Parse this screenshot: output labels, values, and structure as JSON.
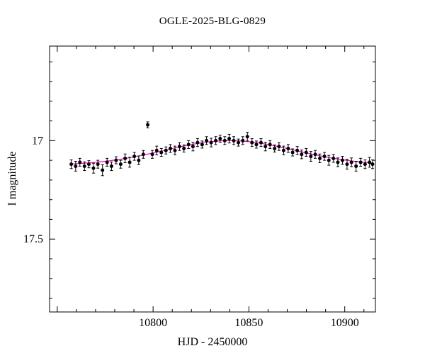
{
  "chart": {
    "title": "OGLE-2025-BLG-0829",
    "xlabel": "HJD - 2450000",
    "ylabel": "I magnitude"
  },
  "chart_data": {
    "type": "scatter",
    "title": "OGLE-2025-BLG-0829",
    "xlabel": "HJD - 2450000",
    "ylabel": "I magnitude",
    "xlim": [
      10746,
      10916
    ],
    "ylim": [
      16.52,
      17.87
    ],
    "y_axis_inverted": true,
    "xticks": [
      10800,
      10850,
      10900
    ],
    "yticks": [
      17,
      17.5
    ],
    "x_minor_step": 10,
    "x_major_step": 50,
    "y_minor_step": 0.1,
    "y_major_step": 0.5,
    "point_color": "#000000",
    "model_color": "#ff00cc",
    "model": {
      "type": "gaussian",
      "baseline": 17.125,
      "amplitude": 0.125,
      "t0": 10840,
      "width": 48,
      "range": [
        10758,
        10915
      ]
    },
    "points": [
      [
        10757.3,
        17.12,
        0.022
      ],
      [
        10759.6,
        17.13,
        0.025
      ],
      [
        10761.8,
        17.11,
        0.02
      ],
      [
        10764.2,
        17.13,
        0.022
      ],
      [
        10766.5,
        17.12,
        0.018
      ],
      [
        10768.9,
        17.14,
        0.025
      ],
      [
        10771.2,
        17.12,
        0.02
      ],
      [
        10773.6,
        17.15,
        0.028
      ],
      [
        10776.0,
        17.11,
        0.02
      ],
      [
        10778.3,
        17.13,
        0.022
      ],
      [
        10780.7,
        17.1,
        0.018
      ],
      [
        10783.1,
        17.12,
        0.02
      ],
      [
        10785.4,
        17.09,
        0.022
      ],
      [
        10787.8,
        17.11,
        0.025
      ],
      [
        10790.2,
        17.08,
        0.02
      ],
      [
        10792.5,
        17.1,
        0.022
      ],
      [
        10794.9,
        17.07,
        0.02
      ],
      [
        10797.2,
        16.92,
        0.015
      ],
      [
        10799.6,
        17.07,
        0.02
      ],
      [
        10801.9,
        17.05,
        0.022
      ],
      [
        10804.3,
        17.06,
        0.02
      ],
      [
        10806.7,
        17.05,
        0.018
      ],
      [
        10809.0,
        17.04,
        0.02
      ],
      [
        10811.4,
        17.05,
        0.022
      ],
      [
        10813.8,
        17.03,
        0.02
      ],
      [
        10816.1,
        17.04,
        0.018
      ],
      [
        10818.5,
        17.02,
        0.02
      ],
      [
        10820.8,
        17.03,
        0.022
      ],
      [
        10823.2,
        17.01,
        0.02
      ],
      [
        10825.6,
        17.02,
        0.018
      ],
      [
        10827.9,
        17.0,
        0.02
      ],
      [
        10830.3,
        17.01,
        0.022
      ],
      [
        10832.7,
        17.0,
        0.02
      ],
      [
        10835.0,
        16.99,
        0.018
      ],
      [
        10837.4,
        17.0,
        0.02
      ],
      [
        10839.7,
        16.99,
        0.022
      ],
      [
        10842.1,
        17.0,
        0.02
      ],
      [
        10844.5,
        17.01,
        0.018
      ],
      [
        10846.8,
        17.0,
        0.02
      ],
      [
        10849.2,
        16.98,
        0.022
      ],
      [
        10851.6,
        17.01,
        0.02
      ],
      [
        10853.9,
        17.02,
        0.018
      ],
      [
        10856.3,
        17.01,
        0.02
      ],
      [
        10858.6,
        17.03,
        0.022
      ],
      [
        10861.0,
        17.02,
        0.02
      ],
      [
        10863.4,
        17.04,
        0.018
      ],
      [
        10865.7,
        17.03,
        0.02
      ],
      [
        10868.1,
        17.05,
        0.022
      ],
      [
        10870.5,
        17.04,
        0.02
      ],
      [
        10872.8,
        17.06,
        0.018
      ],
      [
        10875.2,
        17.05,
        0.02
      ],
      [
        10877.5,
        17.07,
        0.022
      ],
      [
        10879.9,
        17.06,
        0.02
      ],
      [
        10882.3,
        17.08,
        0.025
      ],
      [
        10884.6,
        17.07,
        0.02
      ],
      [
        10887.0,
        17.09,
        0.022
      ],
      [
        10889.4,
        17.08,
        0.02
      ],
      [
        10891.7,
        17.1,
        0.025
      ],
      [
        10894.1,
        17.09,
        0.02
      ],
      [
        10896.4,
        17.11,
        0.022
      ],
      [
        10898.8,
        17.1,
        0.02
      ],
      [
        10901.2,
        17.12,
        0.025
      ],
      [
        10903.5,
        17.11,
        0.022
      ],
      [
        10905.9,
        17.13,
        0.025
      ],
      [
        10908.3,
        17.11,
        0.02
      ],
      [
        10910.6,
        17.12,
        0.022
      ],
      [
        10912.9,
        17.11,
        0.025
      ],
      [
        10914.5,
        17.12,
        0.022
      ]
    ]
  }
}
